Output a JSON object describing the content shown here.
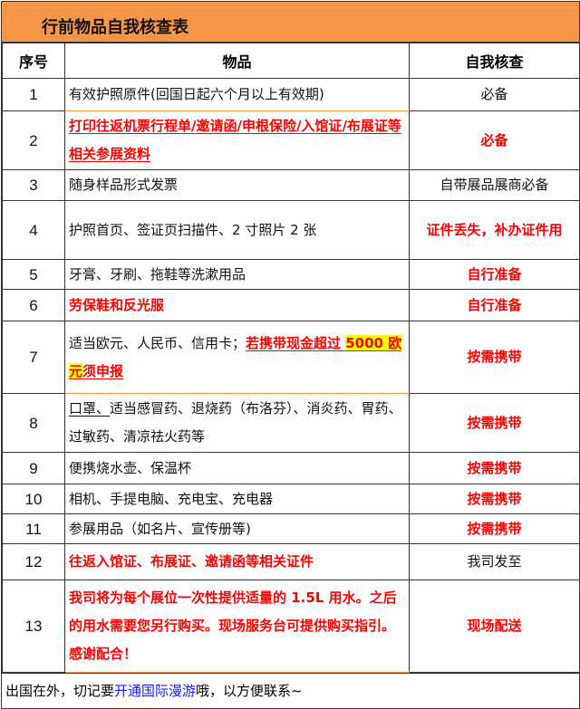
{
  "title": "行前物品自我核查表",
  "headers": [
    "序号",
    "物品",
    "自我核查"
  ],
  "colors": {
    "header_bg": "#f79646",
    "accent_red": "#ff0000",
    "highlight": "#ffff00",
    "link_blue": "#1a1aff"
  },
  "rows": [
    {
      "no": "1",
      "h": 36,
      "item": [
        {
          "text": "有效护照原件(回国日起六个月以上有效期)",
          "style": ""
        }
      ],
      "check": "必备",
      "check_style": ""
    },
    {
      "no": "2",
      "h": 65,
      "item": [
        {
          "text": "打印往返机票行程单/邀请函/申根保险/入馆证/布展证等相关参展资料",
          "style": "red u"
        }
      ],
      "check": "必备",
      "check_style": "red"
    },
    {
      "no": "3",
      "h": 34,
      "item": [
        {
          "text": "随身样品形式发票",
          "style": ""
        }
      ],
      "check": "自带展品展商必备",
      "check_style": ""
    },
    {
      "no": "4",
      "h": 65,
      "item": [
        {
          "text": "护照首页、签证页扫描件、2 寸照片 2 张",
          "style": ""
        }
      ],
      "check": "证件丢失，补办证件用",
      "check_style": "red"
    },
    {
      "no": "5",
      "h": 33,
      "item": [
        {
          "text": "牙膏、牙刷、拖鞋等洗漱用品",
          "style": ""
        }
      ],
      "check": "自行准备",
      "check_style": "red"
    },
    {
      "no": "6",
      "h": 35,
      "item": [
        {
          "text": "劳保鞋和反光服",
          "style": "red"
        }
      ],
      "check": "自行准备",
      "check_style": "red"
    },
    {
      "no": "7",
      "h": 80,
      "item": [
        {
          "text": "适当欧元、人民币、信用卡；",
          "style": ""
        },
        {
          "text": "若携带现金超过 ",
          "style": "red u"
        },
        {
          "text": "5000 欧元",
          "style": "red u hl"
        },
        {
          "text": "须申报",
          "style": "red u"
        }
      ],
      "check": "按需携带",
      "check_style": "red"
    },
    {
      "no": "8",
      "h": 65,
      "item": [
        {
          "text": "口罩、",
          "style": "uk"
        },
        {
          "text": "适当感冒药、退烧药（布洛芬）、消炎药、胃药、过敏药、清凉祛火药等",
          "style": ""
        }
      ],
      "check": "按需携带",
      "check_style": "red"
    },
    {
      "no": "9",
      "h": 35,
      "item": [
        {
          "text": "便携烧水壶、保温杯",
          "style": ""
        }
      ],
      "check": "按需携带",
      "check_style": "red"
    },
    {
      "no": "10",
      "h": 33,
      "item": [
        {
          "text": "相机、手提电脑、充电宝、充电器",
          "style": ""
        }
      ],
      "check": "按需携带",
      "check_style": "red"
    },
    {
      "no": "11",
      "h": 33,
      "item": [
        {
          "text": "参展用品（如名片、宣传册等)",
          "style": ""
        }
      ],
      "check": "按需携带",
      "check_style": "red"
    },
    {
      "no": "12",
      "h": 40,
      "item": [
        {
          "text": "往返入馆证、布展证、邀请函等相关证件",
          "style": "red"
        }
      ],
      "check": "我司发至",
      "check_style": ""
    },
    {
      "no": "13",
      "h": 102,
      "item": [
        {
          "text": "我司将为每个展位一次性提供适量的 1.5L 用水。之后的用水需要您另行购买。现场服务台可提供购买指引。感谢配合！",
          "style": "red"
        }
      ],
      "check": "现场配送",
      "check_style": "red"
    }
  ],
  "footer": [
    {
      "text": "出国在外，切记要",
      "style": ""
    },
    {
      "text": "开通国际漫游",
      "style": "blue"
    },
    {
      "text": "哦，以方便联系~",
      "style": ""
    }
  ]
}
